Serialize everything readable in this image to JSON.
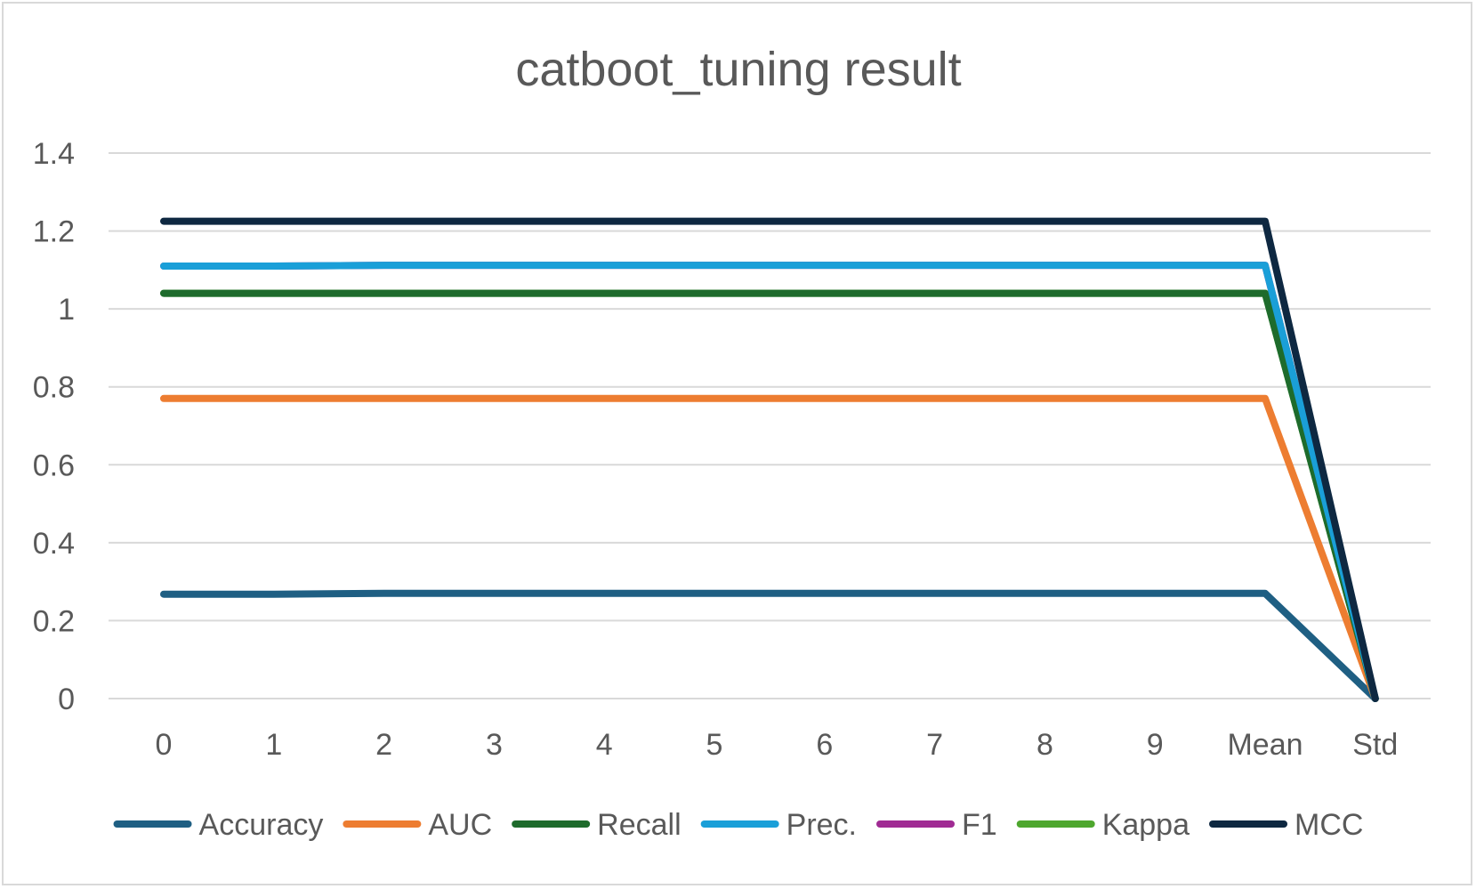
{
  "chart_data": {
    "type": "line",
    "title": "catboot_tuning result",
    "xlabel": "",
    "ylabel": "",
    "categories": [
      "0",
      "1",
      "2",
      "3",
      "4",
      "5",
      "6",
      "7",
      "8",
      "9",
      "Mean",
      "Std"
    ],
    "ylim": [
      0,
      1.4
    ],
    "yticks": [
      0,
      0.2,
      0.4,
      0.6,
      0.8,
      1,
      1.2,
      1.4
    ],
    "yticklabels": [
      "0",
      "0.2",
      "0.4",
      "0.6",
      "0.8",
      "1",
      "1.2",
      "1.4"
    ],
    "grid": "horizontal",
    "legend_position": "bottom",
    "series": [
      {
        "name": "Accuracy",
        "color": "#1f5f83",
        "values": [
          0.268,
          0.268,
          0.27,
          0.27,
          0.27,
          0.27,
          0.27,
          0.27,
          0.27,
          0.27,
          0.27,
          0.0
        ]
      },
      {
        "name": "AUC",
        "color": "#ed7d31",
        "values": [
          0.77,
          0.77,
          0.77,
          0.77,
          0.77,
          0.77,
          0.77,
          0.77,
          0.77,
          0.77,
          0.77,
          0.0
        ]
      },
      {
        "name": "Recall",
        "color": "#1e6b2c",
        "values": [
          1.04,
          1.04,
          1.04,
          1.04,
          1.04,
          1.04,
          1.04,
          1.04,
          1.04,
          1.04,
          1.04,
          0.0
        ]
      },
      {
        "name": "Prec.",
        "color": "#1a9fd8",
        "values": [
          1.11,
          1.11,
          1.112,
          1.112,
          1.112,
          1.112,
          1.112,
          1.112,
          1.112,
          1.112,
          1.112,
          0.0
        ]
      },
      {
        "name": "F1",
        "color": "#a02b93",
        "values": [
          1.11,
          1.11,
          1.112,
          1.112,
          1.112,
          1.112,
          1.112,
          1.112,
          1.112,
          1.112,
          1.112,
          0.0
        ]
      },
      {
        "name": "Kappa",
        "color": "#4ea72e",
        "values": [
          1.04,
          1.04,
          1.04,
          1.04,
          1.04,
          1.04,
          1.04,
          1.04,
          1.04,
          1.04,
          1.04,
          0.0
        ]
      },
      {
        "name": "MCC",
        "color": "#0e2841",
        "values": [
          1.225,
          1.225,
          1.225,
          1.225,
          1.225,
          1.225,
          1.225,
          1.225,
          1.225,
          1.225,
          1.225,
          0.0
        ]
      }
    ],
    "draw_order": [
      "F1",
      "Kappa",
      "Accuracy",
      "AUC",
      "Recall",
      "Prec.",
      "MCC"
    ]
  }
}
